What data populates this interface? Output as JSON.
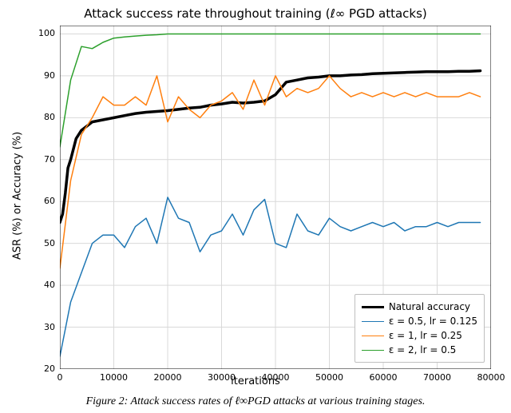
{
  "chart": {
    "type": "line",
    "title": "Attack success rate throughout training (ℓ∞ PGD attacks)",
    "title_fontsize": 15,
    "xlabel": "iterations",
    "ylabel": "ASR (%) or Accuracy (%)",
    "label_fontsize": 13,
    "tick_fontsize": 11,
    "background_color": "#ffffff",
    "grid_color": "#d9d9d9",
    "frame_color": "#000000",
    "xlim": [
      0,
      80000
    ],
    "xtick_step": 10000,
    "xticks": [
      0,
      10000,
      20000,
      30000,
      40000,
      50000,
      60000,
      70000,
      80000
    ],
    "ylim": [
      20,
      102
    ],
    "yticks": [
      20,
      30,
      40,
      50,
      60,
      70,
      80,
      90,
      100
    ],
    "legend": {
      "position": "lower-right",
      "frame_color": "#bfbfbf",
      "bg_color": "#ffffff",
      "entries": [
        {
          "label": "Natural accuracy",
          "color": "#000000",
          "width": 3.5
        },
        {
          "label": "ε = 0.5, lr = 0.125",
          "color": "#1f77b4",
          "width": 1.5
        },
        {
          "label": "ε = 1, lr = 0.25",
          "color": "#ff7f0e",
          "width": 1.5
        },
        {
          "label": "ε = 2, lr = 0.5",
          "color": "#2ca02c",
          "width": 1.5
        }
      ]
    },
    "series": [
      {
        "name": "natural_accuracy",
        "label": "Natural accuracy",
        "color": "#000000",
        "line_width": 3.5,
        "x": [
          0,
          500,
          1000,
          1500,
          2000,
          3000,
          4000,
          5000,
          6000,
          8000,
          10000,
          12000,
          14000,
          16000,
          18000,
          20000,
          22000,
          24000,
          26000,
          28000,
          30000,
          32000,
          34000,
          36000,
          38000,
          40000,
          42000,
          44000,
          46000,
          48000,
          50000,
          52000,
          54000,
          56000,
          58000,
          60000,
          62000,
          64000,
          66000,
          68000,
          70000,
          72000,
          74000,
          76000,
          78000
        ],
        "y": [
          55,
          57,
          62,
          68,
          70,
          75,
          77,
          78,
          79,
          79.5,
          80,
          80.5,
          81,
          81.3,
          81.5,
          81.7,
          82,
          82.3,
          82.5,
          83,
          83.3,
          83.7,
          83.5,
          83.7,
          84,
          85.5,
          88.5,
          89,
          89.5,
          89.7,
          90,
          90,
          90.2,
          90.3,
          90.5,
          90.6,
          90.7,
          90.8,
          90.9,
          91,
          91,
          91,
          91.1,
          91.1,
          91.2
        ]
      },
      {
        "name": "eps0p5",
        "label": "ε = 0.5, lr = 0.125",
        "color": "#1f77b4",
        "line_width": 1.5,
        "x": [
          0,
          2000,
          4000,
          6000,
          8000,
          10000,
          12000,
          14000,
          16000,
          18000,
          20000,
          22000,
          24000,
          26000,
          28000,
          30000,
          32000,
          34000,
          36000,
          38000,
          40000,
          42000,
          44000,
          46000,
          48000,
          50000,
          52000,
          54000,
          56000,
          58000,
          60000,
          62000,
          64000,
          66000,
          68000,
          70000,
          72000,
          74000,
          76000,
          78000
        ],
        "y": [
          23,
          36,
          43,
          50,
          52,
          52,
          49,
          54,
          56,
          50,
          61,
          56,
          55,
          48,
          52,
          53,
          57,
          52,
          58,
          60.5,
          50,
          49,
          57,
          53,
          52,
          56,
          54,
          53,
          54,
          55,
          54,
          55,
          53,
          54,
          54,
          55,
          54,
          55,
          55,
          55
        ]
      },
      {
        "name": "eps1",
        "label": "ε = 1, lr = 0.25",
        "color": "#ff7f0e",
        "line_width": 1.5,
        "x": [
          0,
          2000,
          4000,
          6000,
          8000,
          10000,
          12000,
          14000,
          16000,
          18000,
          20000,
          22000,
          24000,
          26000,
          28000,
          30000,
          32000,
          34000,
          36000,
          38000,
          40000,
          42000,
          44000,
          46000,
          48000,
          50000,
          52000,
          54000,
          56000,
          58000,
          60000,
          62000,
          64000,
          66000,
          68000,
          70000,
          72000,
          74000,
          76000,
          78000
        ],
        "y": [
          44,
          65,
          76,
          80,
          85,
          83,
          83,
          85,
          83,
          90,
          79,
          85,
          82,
          80,
          83,
          84,
          86,
          82,
          89,
          83,
          90,
          85,
          87,
          86,
          87,
          90,
          87,
          85,
          86,
          85,
          86,
          85,
          86,
          85,
          86,
          85,
          85,
          85,
          86,
          85
        ]
      },
      {
        "name": "eps2",
        "label": "ε = 2, lr = 0.5",
        "color": "#2ca02c",
        "line_width": 1.5,
        "x": [
          0,
          2000,
          4000,
          6000,
          8000,
          10000,
          12000,
          14000,
          16000,
          18000,
          20000,
          22000,
          24000,
          26000,
          28000,
          30000,
          32000,
          34000,
          36000,
          38000,
          40000,
          42000,
          44000,
          46000,
          48000,
          50000,
          52000,
          54000,
          56000,
          58000,
          60000,
          62000,
          64000,
          66000,
          68000,
          70000,
          72000,
          74000,
          76000,
          78000
        ],
        "y": [
          73,
          89,
          97,
          96.5,
          98,
          99,
          99.3,
          99.5,
          99.7,
          99.8,
          100,
          100,
          100,
          100,
          100,
          100,
          100,
          100,
          100,
          100,
          100,
          100,
          100,
          100,
          100,
          100,
          100,
          100,
          100,
          100,
          100,
          100,
          100,
          100,
          100,
          100,
          100,
          100,
          100,
          100
        ]
      }
    ],
    "caption": "Figure 2: Attack success rates of ℓ∞PGD attacks at various training stages."
  }
}
